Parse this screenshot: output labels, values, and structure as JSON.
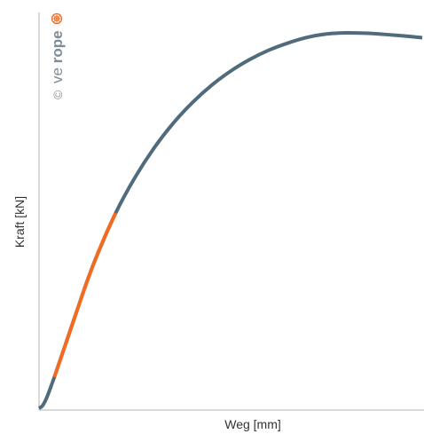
{
  "chart_data": {
    "type": "line",
    "xlabel": "Weg [mm]",
    "ylabel": "Kraft [kN]",
    "grid": false,
    "legend": "none",
    "series": [
      {
        "color": "#4f6b7c",
        "x": [
          0,
          0.5,
          1,
          2,
          4,
          6,
          8,
          10,
          12.5,
          15,
          20,
          25,
          30,
          35,
          40,
          45,
          50,
          55,
          60,
          65,
          70,
          75,
          80,
          85,
          90,
          95,
          100
        ],
        "values": [
          0,
          0.3,
          0.8,
          2.8,
          8.3,
          14.3,
          20.3,
          26.3,
          33.7,
          40.4,
          52.0,
          61.4,
          69.3,
          75.9,
          81.4,
          86.0,
          89.8,
          92.9,
          95.4,
          97.3,
          98.8,
          99.7,
          100.0,
          99.9,
          99.6,
          99.2,
          98.7
        ]
      },
      {
        "color": "#f26b21",
        "x": [
          4,
          6,
          8,
          10,
          12.5,
          15,
          17.5,
          20
        ],
        "values": [
          8.3,
          14.3,
          20.3,
          26.3,
          33.7,
          40.4,
          46.5,
          52.0
        ]
      }
    ]
  },
  "watermark": {
    "copyright": "©",
    "brand_light": "ve",
    "brand_bold": "rope",
    "brand_color": "#7f8c97",
    "logo_color": "#f26b21"
  }
}
